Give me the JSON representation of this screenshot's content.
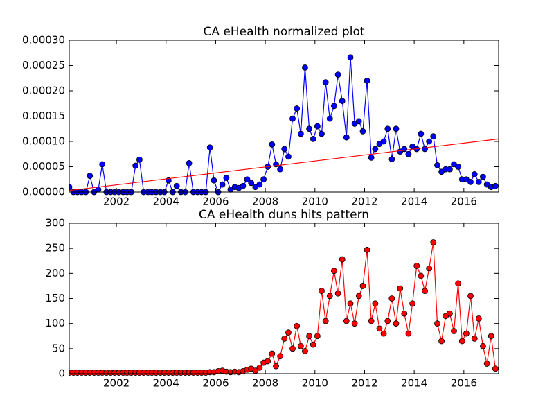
{
  "chart_data": [
    {
      "type": "line",
      "title": "CA eHealth normalized plot",
      "color": "#0000ff",
      "x": [
        2000.1,
        2000.27,
        2000.43,
        2000.6,
        2000.77,
        2000.93,
        2001.1,
        2001.27,
        2001.43,
        2001.6,
        2001.77,
        2001.93,
        2002.1,
        2002.27,
        2002.43,
        2002.6,
        2002.77,
        2002.93,
        2003.1,
        2003.27,
        2003.43,
        2003.6,
        2003.77,
        2003.93,
        2004.1,
        2004.27,
        2004.43,
        2004.6,
        2004.77,
        2004.93,
        2005.1,
        2005.27,
        2005.43,
        2005.6,
        2005.77,
        2005.93,
        2006.1,
        2006.27,
        2006.43,
        2006.6,
        2006.77,
        2006.93,
        2007.1,
        2007.27,
        2007.43,
        2007.6,
        2007.77,
        2007.93,
        2008.1,
        2008.27,
        2008.43,
        2008.6,
        2008.77,
        2008.93,
        2009.1,
        2009.27,
        2009.43,
        2009.6,
        2009.77,
        2009.93,
        2010.1,
        2010.27,
        2010.43,
        2010.6,
        2010.77,
        2010.93,
        2011.1,
        2011.27,
        2011.43,
        2011.6,
        2011.77,
        2011.93,
        2012.1,
        2012.27,
        2012.43,
        2012.6,
        2012.77,
        2012.93,
        2013.1,
        2013.27,
        2013.43,
        2013.6,
        2013.77,
        2013.93,
        2014.1,
        2014.27,
        2014.43,
        2014.6,
        2014.77,
        2014.93,
        2015.1,
        2015.27,
        2015.43,
        2015.6,
        2015.77,
        2015.93,
        2016.1,
        2016.27,
        2016.43,
        2016.6,
        2016.77,
        2016.93,
        2017.1,
        2017.27
      ],
      "values": [
        1e-05,
        0,
        0,
        0,
        0,
        3.2e-05,
        0,
        5e-06,
        5.5e-05,
        0,
        0,
        0,
        0,
        0,
        0,
        0,
        5.2e-05,
        6.4e-05,
        0,
        0,
        0,
        0,
        0,
        0,
        2.3e-05,
        0,
        1.2e-05,
        0,
        0,
        5.7e-05,
        0,
        0,
        0,
        0,
        8.8e-05,
        2.3e-05,
        0,
        1.5e-05,
        2.8e-05,
        5e-06,
        1e-05,
        8e-06,
        1.2e-05,
        2.5e-05,
        1.8e-05,
        1e-05,
        1.5e-05,
        2.5e-05,
        5e-05,
        9.4e-05,
        5.5e-05,
        4.5e-05,
        8.5e-05,
        7e-05,
        0.000145,
        0.000165,
        0.000115,
        0.000246,
        0.000125,
        0.000105,
        0.00013,
        0.000115,
        0.000217,
        0.000145,
        0.00017,
        0.000232,
        0.00018,
        0.000108,
        0.000266,
        0.000135,
        0.00014,
        0.00012,
        0.00022,
        6.8e-05,
        8.5e-05,
        9.5e-05,
        0.0001,
        0.000125,
        6.5e-05,
        0.000125,
        8e-05,
        8.5e-05,
        7.5e-05,
        9e-05,
        8.5e-05,
        0.000115,
        8.5e-05,
        0.0001,
        0.00011,
        5.3e-05,
        4e-05,
        4.5e-05,
        4.5e-05,
        5.5e-05,
        5e-05,
        2.5e-05,
        2.5e-05,
        2e-05,
        3.5e-05,
        2e-05,
        3e-05,
        1.5e-05,
        1e-05,
        1.2e-05
      ],
      "trend": {
        "color": "#ff0000",
        "x": [
          2000.1,
          2017.4
        ],
        "values": [
          3e-06,
          0.000105
        ]
      },
      "xlim": [
        2000.1,
        2017.4
      ],
      "xticks": [
        2002,
        2004,
        2006,
        2008,
        2010,
        2012,
        2014,
        2016
      ],
      "ylim": [
        0,
        0.0003
      ],
      "yticks": [
        {
          "value": 0,
          "label": "0.00000"
        },
        {
          "value": 5e-05,
          "label": "0.00005"
        },
        {
          "value": 0.0001,
          "label": "0.00010"
        },
        {
          "value": 0.00015,
          "label": "0.00015"
        },
        {
          "value": 0.0002,
          "label": "0.00020"
        },
        {
          "value": 0.00025,
          "label": "0.00025"
        },
        {
          "value": 0.0003,
          "label": "0.00030"
        }
      ]
    },
    {
      "type": "line",
      "title": "CA eHealth duns hits pattern",
      "color": "#ff0000",
      "x": [
        2000.1,
        2000.27,
        2000.43,
        2000.6,
        2000.77,
        2000.93,
        2001.1,
        2001.27,
        2001.43,
        2001.6,
        2001.77,
        2001.93,
        2002.1,
        2002.27,
        2002.43,
        2002.6,
        2002.77,
        2002.93,
        2003.1,
        2003.27,
        2003.43,
        2003.6,
        2003.77,
        2003.93,
        2004.1,
        2004.27,
        2004.43,
        2004.6,
        2004.77,
        2004.93,
        2005.1,
        2005.27,
        2005.43,
        2005.6,
        2005.77,
        2005.93,
        2006.1,
        2006.27,
        2006.43,
        2006.6,
        2006.77,
        2006.93,
        2007.1,
        2007.27,
        2007.43,
        2007.6,
        2007.77,
        2007.93,
        2008.1,
        2008.27,
        2008.43,
        2008.6,
        2008.77,
        2008.93,
        2009.1,
        2009.27,
        2009.43,
        2009.6,
        2009.77,
        2009.93,
        2010.1,
        2010.27,
        2010.43,
        2010.6,
        2010.77,
        2010.93,
        2011.1,
        2011.27,
        2011.43,
        2011.6,
        2011.77,
        2011.93,
        2012.1,
        2012.27,
        2012.43,
        2012.6,
        2012.77,
        2012.93,
        2013.1,
        2013.27,
        2013.43,
        2013.6,
        2013.77,
        2013.93,
        2014.1,
        2014.27,
        2014.43,
        2014.6,
        2014.77,
        2014.93,
        2015.1,
        2015.27,
        2015.43,
        2015.6,
        2015.77,
        2015.93,
        2016.1,
        2016.27,
        2016.43,
        2016.6,
        2016.77,
        2016.93,
        2017.1,
        2017.27
      ],
      "values": [
        2,
        2,
        2,
        2,
        2,
        2,
        2,
        2,
        2,
        2,
        2,
        2,
        2,
        2,
        2,
        2,
        2,
        2,
        2,
        2,
        2,
        2,
        2,
        2,
        2,
        2,
        2,
        2,
        2,
        2,
        2,
        2,
        2,
        2,
        3,
        3,
        5,
        6,
        4,
        3,
        4,
        3,
        5,
        8,
        10,
        6,
        12,
        22,
        25,
        40,
        15,
        35,
        70,
        82,
        50,
        95,
        55,
        45,
        75,
        58,
        75,
        165,
        105,
        155,
        205,
        160,
        228,
        105,
        140,
        100,
        155,
        175,
        247,
        105,
        140,
        90,
        80,
        105,
        150,
        100,
        170,
        120,
        80,
        140,
        215,
        195,
        165,
        210,
        262,
        100,
        65,
        115,
        120,
        85,
        180,
        65,
        80,
        155,
        70,
        110,
        55,
        20,
        75,
        10
      ],
      "xlim": [
        2000.1,
        2017.4
      ],
      "xticks": [
        2002,
        2004,
        2006,
        2008,
        2010,
        2012,
        2014,
        2016
      ],
      "ylim": [
        0,
        300
      ],
      "yticks": [
        0,
        50,
        100,
        150,
        200,
        250,
        300
      ]
    }
  ]
}
